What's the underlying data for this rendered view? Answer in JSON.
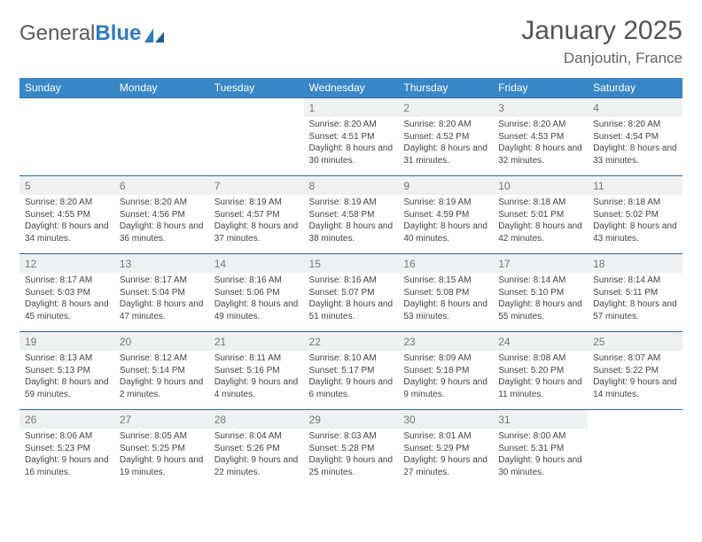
{
  "logo": {
    "part1": "General",
    "part2": "Blue"
  },
  "title": "January 2025",
  "location": "Danjoutin, France",
  "colors": {
    "header_bg": "#3a87c8",
    "header_text": "#ffffff",
    "daynum_bg": "#eef0f2",
    "row_border": "#2c6aa0",
    "body_text": "#444444"
  },
  "weekdays": [
    "Sunday",
    "Monday",
    "Tuesday",
    "Wednesday",
    "Thursday",
    "Friday",
    "Saturday"
  ],
  "weeks": [
    [
      null,
      null,
      null,
      {
        "n": "1",
        "sr": "8:20 AM",
        "ss": "4:51 PM",
        "dl": "8 hours and 30 minutes."
      },
      {
        "n": "2",
        "sr": "8:20 AM",
        "ss": "4:52 PM",
        "dl": "8 hours and 31 minutes."
      },
      {
        "n": "3",
        "sr": "8:20 AM",
        "ss": "4:53 PM",
        "dl": "8 hours and 32 minutes."
      },
      {
        "n": "4",
        "sr": "8:20 AM",
        "ss": "4:54 PM",
        "dl": "8 hours and 33 minutes."
      }
    ],
    [
      {
        "n": "5",
        "sr": "8:20 AM",
        "ss": "4:55 PM",
        "dl": "8 hours and 34 minutes."
      },
      {
        "n": "6",
        "sr": "8:20 AM",
        "ss": "4:56 PM",
        "dl": "8 hours and 36 minutes."
      },
      {
        "n": "7",
        "sr": "8:19 AM",
        "ss": "4:57 PM",
        "dl": "8 hours and 37 minutes."
      },
      {
        "n": "8",
        "sr": "8:19 AM",
        "ss": "4:58 PM",
        "dl": "8 hours and 38 minutes."
      },
      {
        "n": "9",
        "sr": "8:19 AM",
        "ss": "4:59 PM",
        "dl": "8 hours and 40 minutes."
      },
      {
        "n": "10",
        "sr": "8:18 AM",
        "ss": "5:01 PM",
        "dl": "8 hours and 42 minutes."
      },
      {
        "n": "11",
        "sr": "8:18 AM",
        "ss": "5:02 PM",
        "dl": "8 hours and 43 minutes."
      }
    ],
    [
      {
        "n": "12",
        "sr": "8:17 AM",
        "ss": "5:03 PM",
        "dl": "8 hours and 45 minutes."
      },
      {
        "n": "13",
        "sr": "8:17 AM",
        "ss": "5:04 PM",
        "dl": "8 hours and 47 minutes."
      },
      {
        "n": "14",
        "sr": "8:16 AM",
        "ss": "5:06 PM",
        "dl": "8 hours and 49 minutes."
      },
      {
        "n": "15",
        "sr": "8:16 AM",
        "ss": "5:07 PM",
        "dl": "8 hours and 51 minutes."
      },
      {
        "n": "16",
        "sr": "8:15 AM",
        "ss": "5:08 PM",
        "dl": "8 hours and 53 minutes."
      },
      {
        "n": "17",
        "sr": "8:14 AM",
        "ss": "5:10 PM",
        "dl": "8 hours and 55 minutes."
      },
      {
        "n": "18",
        "sr": "8:14 AM",
        "ss": "5:11 PM",
        "dl": "8 hours and 57 minutes."
      }
    ],
    [
      {
        "n": "19",
        "sr": "8:13 AM",
        "ss": "5:13 PM",
        "dl": "8 hours and 59 minutes."
      },
      {
        "n": "20",
        "sr": "8:12 AM",
        "ss": "5:14 PM",
        "dl": "9 hours and 2 minutes."
      },
      {
        "n": "21",
        "sr": "8:11 AM",
        "ss": "5:16 PM",
        "dl": "9 hours and 4 minutes."
      },
      {
        "n": "22",
        "sr": "8:10 AM",
        "ss": "5:17 PM",
        "dl": "9 hours and 6 minutes."
      },
      {
        "n": "23",
        "sr": "8:09 AM",
        "ss": "5:18 PM",
        "dl": "9 hours and 9 minutes."
      },
      {
        "n": "24",
        "sr": "8:08 AM",
        "ss": "5:20 PM",
        "dl": "9 hours and 11 minutes."
      },
      {
        "n": "25",
        "sr": "8:07 AM",
        "ss": "5:22 PM",
        "dl": "9 hours and 14 minutes."
      }
    ],
    [
      {
        "n": "26",
        "sr": "8:06 AM",
        "ss": "5:23 PM",
        "dl": "9 hours and 16 minutes."
      },
      {
        "n": "27",
        "sr": "8:05 AM",
        "ss": "5:25 PM",
        "dl": "9 hours and 19 minutes."
      },
      {
        "n": "28",
        "sr": "8:04 AM",
        "ss": "5:26 PM",
        "dl": "9 hours and 22 minutes."
      },
      {
        "n": "29",
        "sr": "8:03 AM",
        "ss": "5:28 PM",
        "dl": "9 hours and 25 minutes."
      },
      {
        "n": "30",
        "sr": "8:01 AM",
        "ss": "5:29 PM",
        "dl": "9 hours and 27 minutes."
      },
      {
        "n": "31",
        "sr": "8:00 AM",
        "ss": "5:31 PM",
        "dl": "9 hours and 30 minutes."
      },
      null
    ]
  ],
  "labels": {
    "sunrise": "Sunrise:",
    "sunset": "Sunset:",
    "daylight": "Daylight:"
  }
}
